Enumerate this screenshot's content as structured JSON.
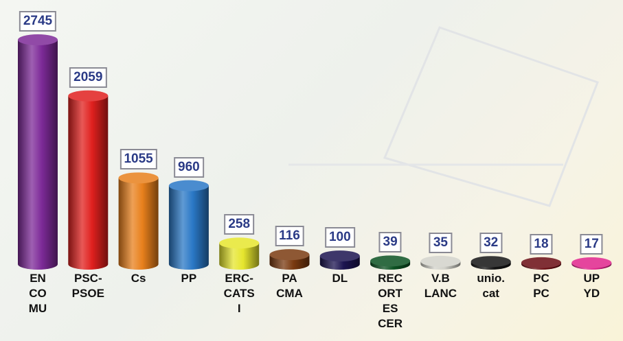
{
  "chart_data": {
    "type": "bar",
    "categories": [
      "EN\nCO\nMU",
      "PSC-\nPSOE",
      "Cs",
      "PP",
      "ERC-\nCATS\nI",
      "PA\nCMA",
      "DL",
      "REC\nORT\nES\nCER",
      "V.B\nLANC",
      "unio.\ncat",
      "PC\nPC",
      "UP\nYD"
    ],
    "values": [
      2745,
      2059,
      1055,
      960,
      258,
      116,
      100,
      39,
      35,
      32,
      18,
      17
    ],
    "colors": [
      "#7d2a98",
      "#e0201e",
      "#e8801c",
      "#2a78c6",
      "#e6e62e",
      "#7a3a10",
      "#1c1450",
      "#0c5222",
      "#d2d2ca",
      "#141414",
      "#6a0c12",
      "#e0248c"
    ]
  }
}
